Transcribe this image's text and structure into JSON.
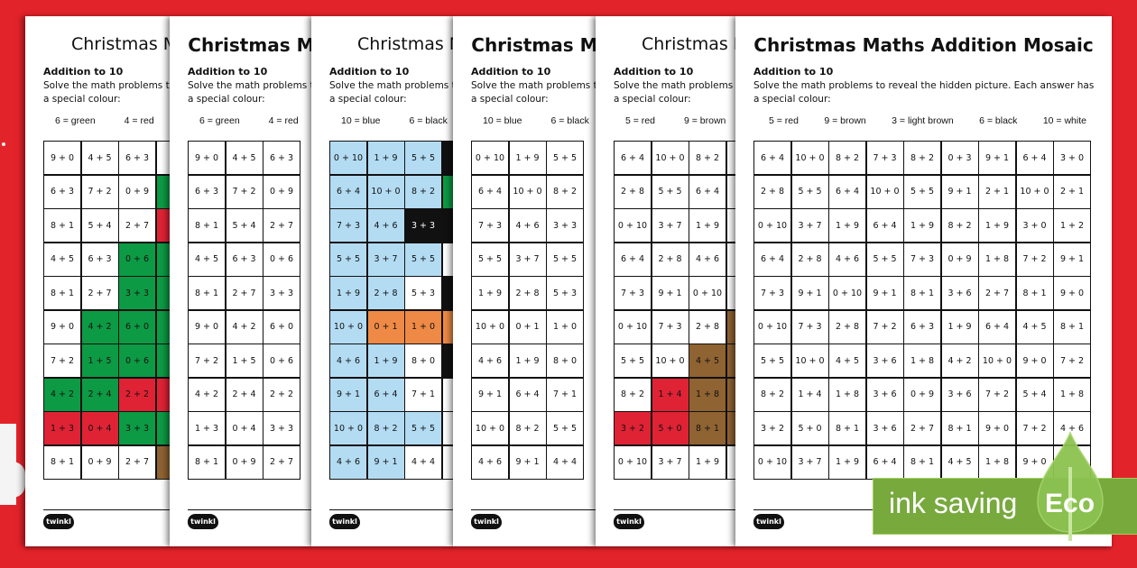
{
  "title": "Christmas Maths Addition Mosaic",
  "subtitle": "Addition to 10",
  "instructions": "Solve the math problems to reveal the hidden picture. Each answer has a special colour:",
  "logo_text": "twinkl",
  "badge": {
    "text": "ink saving",
    "eco": "Eco",
    "color": "#77a93d"
  },
  "colors": {
    "g": "#0d9a44",
    "r": "#df2335",
    "l": "#b3dcf3",
    "k": "#111111",
    "o": "#ee8a45",
    "n": "#8f6332",
    "": "#ffffff"
  },
  "sheets": [
    {
      "bold": false,
      "keys": [
        "6 = green",
        "4 = red"
      ],
      "rows": [
        [
          "9 + 0",
          "4 + 5",
          "6 + 3"
        ],
        [
          "6 + 3",
          "7 + 2",
          "0 + 9"
        ],
        [
          "8 + 1",
          "5 + 4",
          "2 + 7"
        ],
        [
          "4 + 5",
          "6 + 3",
          "0 + 6"
        ],
        [
          "8 + 1",
          "2 + 7",
          "3 + 3"
        ],
        [
          "9 + 0",
          "4 + 2",
          "6 + 0"
        ],
        [
          "7 + 2",
          "1 + 5",
          "0 + 6"
        ],
        [
          "4 + 2",
          "2 + 4",
          "2 + 2"
        ],
        [
          "1 + 3",
          "0 + 4",
          "3 + 3"
        ],
        [
          "8 + 1",
          "0 + 9",
          "2 + 7"
        ]
      ],
      "fills": [
        [
          "",
          "",
          "",
          ""
        ],
        [
          "",
          "",
          "",
          "g"
        ],
        [
          "",
          "",
          "",
          "r"
        ],
        [
          "",
          "",
          "g",
          "g"
        ],
        [
          "",
          "",
          "g",
          "g"
        ],
        [
          "",
          "g",
          "g",
          "g"
        ],
        [
          "",
          "g",
          "g",
          "g"
        ],
        [
          "g",
          "g",
          "r",
          "r"
        ],
        [
          "r",
          "r",
          "g",
          "g"
        ],
        [
          "",
          "",
          "",
          "n"
        ]
      ]
    },
    {
      "bold": true,
      "keys": [
        "6 = green",
        "4 = red"
      ],
      "rows": [
        [
          "9 + 0",
          "4 + 5",
          "6 + 3"
        ],
        [
          "6 + 3",
          "7 + 2",
          "0 + 9"
        ],
        [
          "8 + 1",
          "5 + 4",
          "2 + 7"
        ],
        [
          "4 + 5",
          "6 + 3",
          "0 + 6"
        ],
        [
          "8 + 1",
          "2 + 7",
          "3 + 3"
        ],
        [
          "9 + 0",
          "4 + 2",
          "6 + 0"
        ],
        [
          "7 + 2",
          "1 + 5",
          "0 + 6"
        ],
        [
          "4 + 2",
          "2 + 4",
          "2 + 2"
        ],
        [
          "1 + 3",
          "0 + 4",
          "3 + 3"
        ],
        [
          "8 + 1",
          "0 + 9",
          "2 + 7"
        ]
      ],
      "fills": []
    },
    {
      "bold": false,
      "keys": [
        "10 = blue",
        "6 = black"
      ],
      "rows": [
        [
          "0 + 10",
          "1 + 9",
          "5 + 5"
        ],
        [
          "6 + 4",
          "10 + 0",
          "8 + 2"
        ],
        [
          "7 + 3",
          "4 + 6",
          "3 + 3"
        ],
        [
          "5 + 5",
          "3 + 7",
          "5 + 5"
        ],
        [
          "1 + 9",
          "2 + 8",
          "5 + 3"
        ],
        [
          "10 + 0",
          "0 + 1",
          "1 + 0"
        ],
        [
          "4 + 6",
          "1 + 9",
          "8 + 0"
        ],
        [
          "9 + 1",
          "6 + 4",
          "7 + 1"
        ],
        [
          "10 + 0",
          "8 + 2",
          "5 + 5"
        ],
        [
          "4 + 6",
          "9 + 1",
          "4 + 4"
        ]
      ],
      "fills": [
        [
          "l",
          "l",
          "l",
          "k"
        ],
        [
          "l",
          "l",
          "l",
          "g"
        ],
        [
          "l",
          "l",
          "k",
          "k"
        ],
        [
          "l",
          "l",
          "l",
          ""
        ],
        [
          "l",
          "l",
          "",
          "k"
        ],
        [
          "l",
          "o",
          "o",
          "o"
        ],
        [
          "l",
          "l",
          "",
          "k"
        ],
        [
          "l",
          "l",
          "",
          ""
        ],
        [
          "l",
          "l",
          "l",
          ""
        ],
        [
          "l",
          "l",
          "",
          ""
        ]
      ]
    },
    {
      "bold": true,
      "keys": [
        "10 = blue",
        "6 = black"
      ],
      "rows": [
        [
          "0 + 10",
          "1 + 9",
          "5 + 5"
        ],
        [
          "6 + 4",
          "10 + 0",
          "8 + 2"
        ],
        [
          "7 + 3",
          "4 + 6",
          "3 + 3"
        ],
        [
          "5 + 5",
          "3 + 7",
          "5 + 5"
        ],
        [
          "1 + 9",
          "2 + 8",
          "5 + 3"
        ],
        [
          "10 + 0",
          "0 + 1",
          "1 + 0"
        ],
        [
          "4 + 6",
          "1 + 9",
          "8 + 0"
        ],
        [
          "9 + 1",
          "6 + 4",
          "7 + 1"
        ],
        [
          "10 + 0",
          "8 + 2",
          "5 + 5"
        ],
        [
          "4 + 6",
          "9 + 1",
          "4 + 4"
        ]
      ],
      "fills": []
    },
    {
      "bold": false,
      "keys": [
        "5 = red",
        "9 = brown"
      ],
      "rows": [
        [
          "6 + 4",
          "10 + 0",
          "8 + 2"
        ],
        [
          "2 + 8",
          "5 + 5",
          "6 + 4"
        ],
        [
          "0 + 10",
          "3 + 7",
          "1 + 9"
        ],
        [
          "6 + 4",
          "2 + 8",
          "4 + 6"
        ],
        [
          "7 + 3",
          "9 + 1",
          "0 + 10"
        ],
        [
          "0 + 10",
          "7 + 3",
          "2 + 8"
        ],
        [
          "5 + 5",
          "10 + 0",
          "4 + 5"
        ],
        [
          "8 + 2",
          "1 + 4",
          "1 + 8"
        ],
        [
          "3 + 2",
          "5 + 0",
          "8 + 1"
        ],
        [
          "0 + 10",
          "3 + 7",
          "1 + 9"
        ]
      ],
      "fills": [
        [
          "",
          "",
          "",
          ""
        ],
        [
          "",
          "",
          "",
          ""
        ],
        [
          "",
          "",
          "",
          ""
        ],
        [
          "",
          "",
          "",
          ""
        ],
        [
          "",
          "",
          "",
          ""
        ],
        [
          "",
          "",
          "",
          "n"
        ],
        [
          "",
          "",
          "n",
          "n"
        ],
        [
          "",
          "r",
          "n",
          "n"
        ],
        [
          "r",
          "r",
          "n",
          "n"
        ],
        [
          "",
          "",
          "",
          ""
        ]
      ]
    },
    {
      "bold": true,
      "keys": [
        "5 = red",
        "9 = brown",
        "3 = light brown",
        "6 = black",
        "10 = white"
      ],
      "rows": [
        [
          "6 + 4",
          "10 + 0",
          "8 + 2",
          "7 + 3",
          "8 + 2",
          "0 + 3",
          "9 + 1",
          "6 + 4",
          "3 + 0"
        ],
        [
          "2 + 8",
          "5 + 5",
          "6 + 4",
          "10 + 0",
          "5 + 5",
          "9 + 1",
          "2 + 1",
          "10 + 0",
          "2 + 1"
        ],
        [
          "0 + 10",
          "3 + 7",
          "1 + 9",
          "6 + 4",
          "1 + 9",
          "8 + 2",
          "1 + 9",
          "3 + 0",
          "1 + 2"
        ],
        [
          "6 + 4",
          "2 + 8",
          "4 + 6",
          "5 + 5",
          "7 + 3",
          "0 + 9",
          "1 + 8",
          "7 + 2",
          "9 + 1"
        ],
        [
          "7 + 3",
          "9 + 1",
          "0 + 10",
          "9 + 1",
          "8 + 1",
          "3 + 6",
          "2 + 7",
          "8 + 1",
          "9 + 0"
        ],
        [
          "0 + 10",
          "7 + 3",
          "2 + 8",
          "7 + 2",
          "6 + 3",
          "1 + 9",
          "6 + 4",
          "4 + 5",
          "8 + 1"
        ],
        [
          "5 + 5",
          "10 + 0",
          "4 + 5",
          "3 + 6",
          "1 + 8",
          "4 + 2",
          "10 + 0",
          "9 + 0",
          "7 + 2"
        ],
        [
          "8 + 2",
          "1 + 4",
          "1 + 8",
          "3 + 6",
          "0 + 9",
          "3 + 6",
          "7 + 2",
          "5 + 4",
          "1 + 8"
        ],
        [
          "3 + 2",
          "5 + 0",
          "8 + 1",
          "3 + 6",
          "2 + 7",
          "8 + 1",
          "9 + 0",
          "7 + 2",
          "4 + 6"
        ],
        [
          "0 + 10",
          "3 + 7",
          "1 + 9",
          "6 + 4",
          "8 + 1",
          "4 + 5",
          "1 + 8",
          "9 + 0",
          ""
        ]
      ],
      "fills": []
    }
  ]
}
